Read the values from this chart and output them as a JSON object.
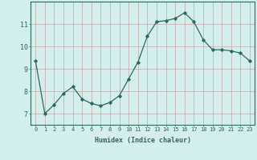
{
  "x": [
    0,
    1,
    2,
    3,
    4,
    5,
    6,
    7,
    8,
    9,
    10,
    11,
    12,
    13,
    14,
    15,
    16,
    17,
    18,
    19,
    20,
    21,
    22,
    23
  ],
  "y": [
    9.35,
    7.0,
    7.4,
    7.9,
    8.2,
    7.65,
    7.45,
    7.35,
    7.5,
    7.8,
    8.55,
    9.3,
    10.45,
    11.1,
    11.15,
    11.25,
    11.5,
    11.1,
    10.3,
    9.85,
    9.85,
    9.8,
    9.7,
    9.35
  ],
  "ylim": [
    6.5,
    12.0
  ],
  "xlim": [
    -0.5,
    23.5
  ],
  "yticks": [
    7,
    8,
    9,
    10,
    11
  ],
  "xticks": [
    0,
    1,
    2,
    3,
    4,
    5,
    6,
    7,
    8,
    9,
    10,
    11,
    12,
    13,
    14,
    15,
    16,
    17,
    18,
    19,
    20,
    21,
    22,
    23
  ],
  "xlabel": "Humidex (Indice chaleur)",
  "line_color": "#2d6b5e",
  "marker": "D",
  "marker_size": 1.8,
  "bg_color": "#d4eeee",
  "grid_color": "#c0a8a8",
  "tick_color": "#2d6b5e",
  "label_fontsize": 5.0,
  "xlabel_fontsize": 6.0
}
